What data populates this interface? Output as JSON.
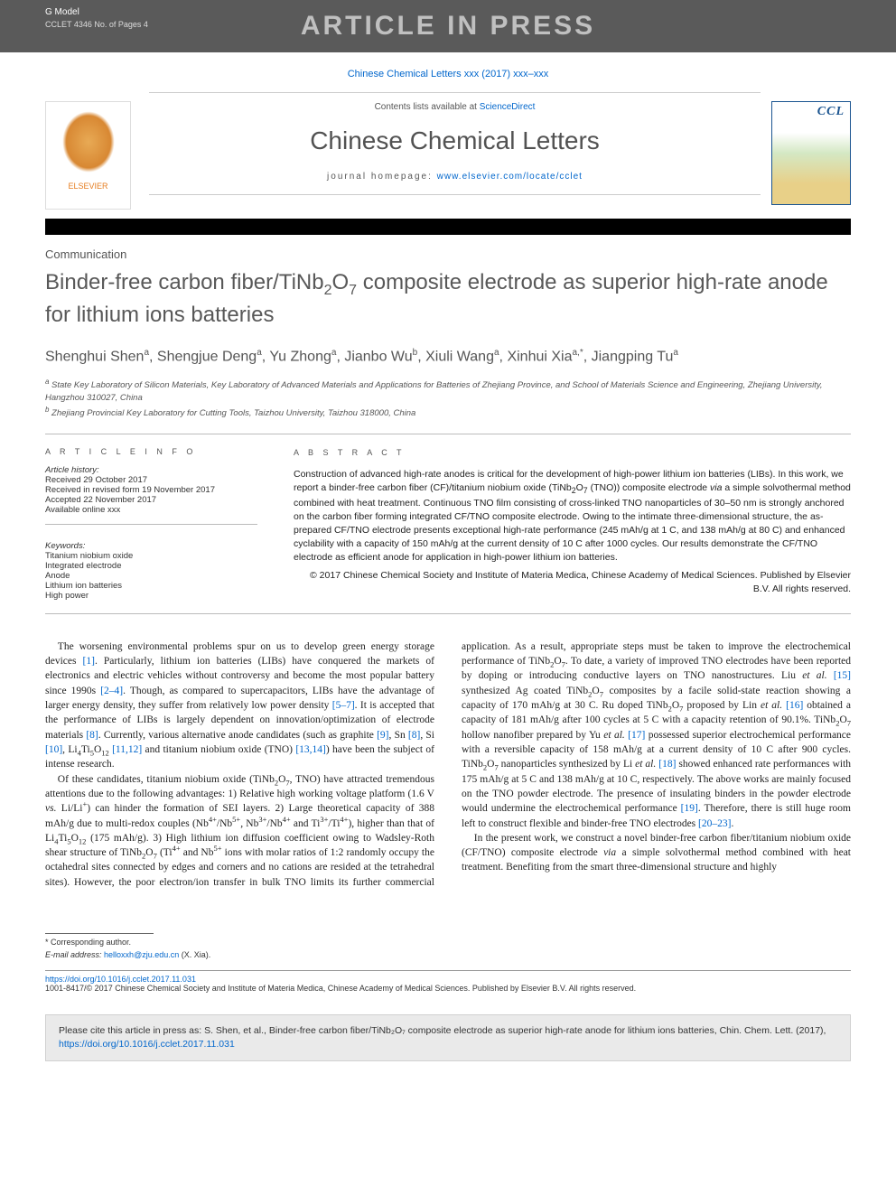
{
  "header": {
    "gmodel": "G Model",
    "gmodel_sub": "CCLET 4346 No. of Pages 4",
    "press_banner": "ARTICLE IN PRESS",
    "journal_ref_text": "Chinese Chemical Letters xxx (2017) xxx–xxx"
  },
  "masthead": {
    "contents_prefix": "Contents lists available at ",
    "contents_link": "ScienceDirect",
    "journal_name": "Chinese Chemical Letters",
    "homepage_prefix": "journal homepage: ",
    "homepage_url": "www.elsevier.com/locate/cclet",
    "elsevier_label": "ELSEVIER",
    "ccl_label": "CCL"
  },
  "article": {
    "type": "Communication",
    "title_html": "Binder-free carbon fiber/TiNb<sub>2</sub>O<sub>7</sub> composite electrode as superior high-rate anode for lithium ions batteries",
    "authors_html": "Shenghui Shen<sup>a</sup>, Shengjue Deng<sup>a</sup>, Yu Zhong<sup>a</sup>, Jianbo Wu<sup>b</sup>, Xiuli Wang<sup>a</sup>, Xinhui Xia<sup>a,*</sup>, Jiangping Tu<sup>a</sup>",
    "affiliations_html": "<sup>a</sup> State Key Laboratory of Silicon Materials, Key Laboratory of Advanced Materials and Applications for Batteries of Zhejiang Province, and School of Materials Science and Engineering, Zhejiang University, Hangzhou 310027, China<br><sup>b</sup> Zhejiang Provincial Key Laboratory for Cutting Tools, Taizhou University, Taizhou 318000, China"
  },
  "info": {
    "heading": "A R T I C L E  I N F O",
    "history_head": "Article history:",
    "received": "Received 29 October 2017",
    "revised": "Received in revised form 19 November 2017",
    "accepted": "Accepted 22 November 2017",
    "online": "Available online xxx",
    "keywords_head": "Keywords:",
    "keywords": [
      "Titanium niobium oxide",
      "Integrated electrode",
      "Anode",
      "Lithium ion batteries",
      "High power"
    ]
  },
  "abstract": {
    "heading": "A B S T R A C T",
    "text_html": "Construction of advanced high-rate anodes is critical for the development of high-power lithium ion batteries (LIBs). In this work, we report a binder-free carbon fiber (CF)/titanium niobium oxide (TiNb<sub>2</sub>O<sub>7</sub> (TNO)) composite electrode <i>via</i> a simple solvothermal method combined with heat treatment. Continuous TNO film consisting of cross-linked TNO nanoparticles of 30–50 nm is strongly anchored on the carbon fiber forming integrated CF/TNO composite electrode. Owing to the intimate three-dimensional structure, the as-prepared CF/TNO electrode presents exceptional high-rate performance (245 mAh/g at 1 C, and 138 mAh/g at 80 C) and enhanced cyclability with a capacity of 150 mAh/g at the current density of 10 C after 1000 cycles. Our results demonstrate the CF/TNO electrode as efficient anode for application in high-power lithium ion batteries.",
    "copyright": "© 2017 Chinese Chemical Society and Institute of Materia Medica, Chinese Academy of Medical Sciences. Published by Elsevier B.V. All rights reserved."
  },
  "body": {
    "p1_html": "The worsening environmental problems spur on us to develop green energy storage devices <a href='#'>[1]</a>. Particularly, lithium ion batteries (LIBs) have conquered the markets of electronics and electric vehicles without controversy and become the most popular battery since 1990s <a href='#'>[2–4]</a>. Though, as compared to supercapacitors, LIBs have the advantage of larger energy density, they suffer from relatively low power density <a href='#'>[5–7]</a>. It is accepted that the performance of LIBs is largely dependent on innovation/optimization of electrode materials <a href='#'>[8]</a>. Currently, various alternative anode candidates (such as graphite <a href='#'>[9]</a>, Sn <a href='#'>[8]</a>, Si <a href='#'>[10]</a>, Li<sub>4</sub>Ti<sub>5</sub>O<sub>12</sub> <a href='#'>[11,12]</a> and titanium niobium oxide (TNO) <a href='#'>[13,14]</a>) have been the subject of intense research.",
    "p2_html": "Of these candidates, titanium niobium oxide (TiNb<sub>2</sub>O<sub>7</sub>, TNO) have attracted tremendous attentions due to the following advantages: 1) Relative high working voltage platform (1.6 V <i>vs.</i> Li/Li<sup>+</sup>) can hinder the formation of SEI layers. 2) Large theoretical capacity of 388 mAh/g due to multi-redox couples (Nb<sup>4+</sup>/Nb<sup>5+</sup>, Nb<sup>3+</sup>/Nb<sup>4+</sup> and Ti<sup>3+</sup>/Ti<sup>4+</sup>), higher than that of Li<sub>4</sub>Ti<sub>5</sub>O<sub>12</sub> (175 mAh/g). 3) High lithium ion diffusion coefficient owing to Wadsley-Roth shear structure of TiNb<sub>2</sub>O<sub>7</sub> (Ti<sup>4+</sup> and Nb<sup>5+</sup> ions with molar ratios of 1:2 randomly occupy the octahedral sites connected by edges and corners and no cations are resided at the tetrahedral sites). However, the poor electron/ion transfer in bulk TNO limits its further commercial application. As a result, appropriate steps must be taken to improve the electrochemical performance of TiNb<sub>2</sub>O<sub>7</sub>. To date, a variety of improved TNO electrodes have been reported by doping or introducing conductive layers on TNO nanostructures. Liu <i>et al.</i> <a href='#'>[15]</a> synthesized Ag coated TiNb<sub>2</sub>O<sub>7</sub> composites by a facile solid-state reaction showing a capacity of 170 mAh/g at 30 C. Ru doped TiNb<sub>2</sub>O<sub>7</sub> proposed by Lin <i>et al.</i> <a href='#'>[16]</a> obtained a capacity of 181 mAh/g after 100 cycles at 5 C with a capacity retention of 90.1%. TiNb<sub>2</sub>O<sub>7</sub> hollow nanofiber prepared by Yu <i>et al.</i> <a href='#'>[17]</a> possessed superior electrochemical performance with a reversible capacity of 158 mAh/g at a current density of 10 C after 900 cycles. TiNb<sub>2</sub>O<sub>7</sub> nanoparticles synthesized by Li <i>et al.</i> <a href='#'>[18]</a> showed enhanced rate performances with 175 mAh/g at 5 C and 138 mAh/g at 10 C, respectively. The above works are mainly focused on the TNO powder electrode. The presence of insulating binders in the powder electrode would undermine the electrochemical performance <a href='#'>[19]</a>. Therefore, there is still huge room left to construct flexible and binder-free TNO electrodes <a href='#'>[20–23]</a>.",
    "p3_html": "In the present work, we construct a novel binder-free carbon fiber/titanium niobium oxide (CF/TNO) composite electrode <i>via</i> a simple solvothermal method combined with heat treatment. Benefiting from the smart three-dimensional structure and highly"
  },
  "footnote": {
    "corresponding": "* Corresponding author.",
    "email_label": "E-mail address:",
    "email": "helloxxh@zju.edu.cn",
    "email_who": "(X. Xia)."
  },
  "footer": {
    "doi": "https://doi.org/10.1016/j.cclet.2017.11.031",
    "issn_line": "1001-8417/© 2017 Chinese Chemical Society and Institute of Materia Medica, Chinese Academy of Medical Sciences. Published by Elsevier B.V. All rights reserved."
  },
  "citebox": {
    "text_prefix": "Please cite this article in press as: S. Shen, et al., Binder-free carbon fiber/TiNb₂O₇ composite electrode as superior high-rate anode for lithium ions batteries, Chin. Chem. Lett. (2017), ",
    "link": "https://doi.org/10.1016/j.cclet.2017.11.031"
  },
  "colors": {
    "header_bg": "#5a5a5a",
    "link": "#0066cc",
    "title": "#585858",
    "text": "#222222",
    "muted": "#555555",
    "sep": "#000000",
    "citebox_bg": "#eaeaea"
  }
}
